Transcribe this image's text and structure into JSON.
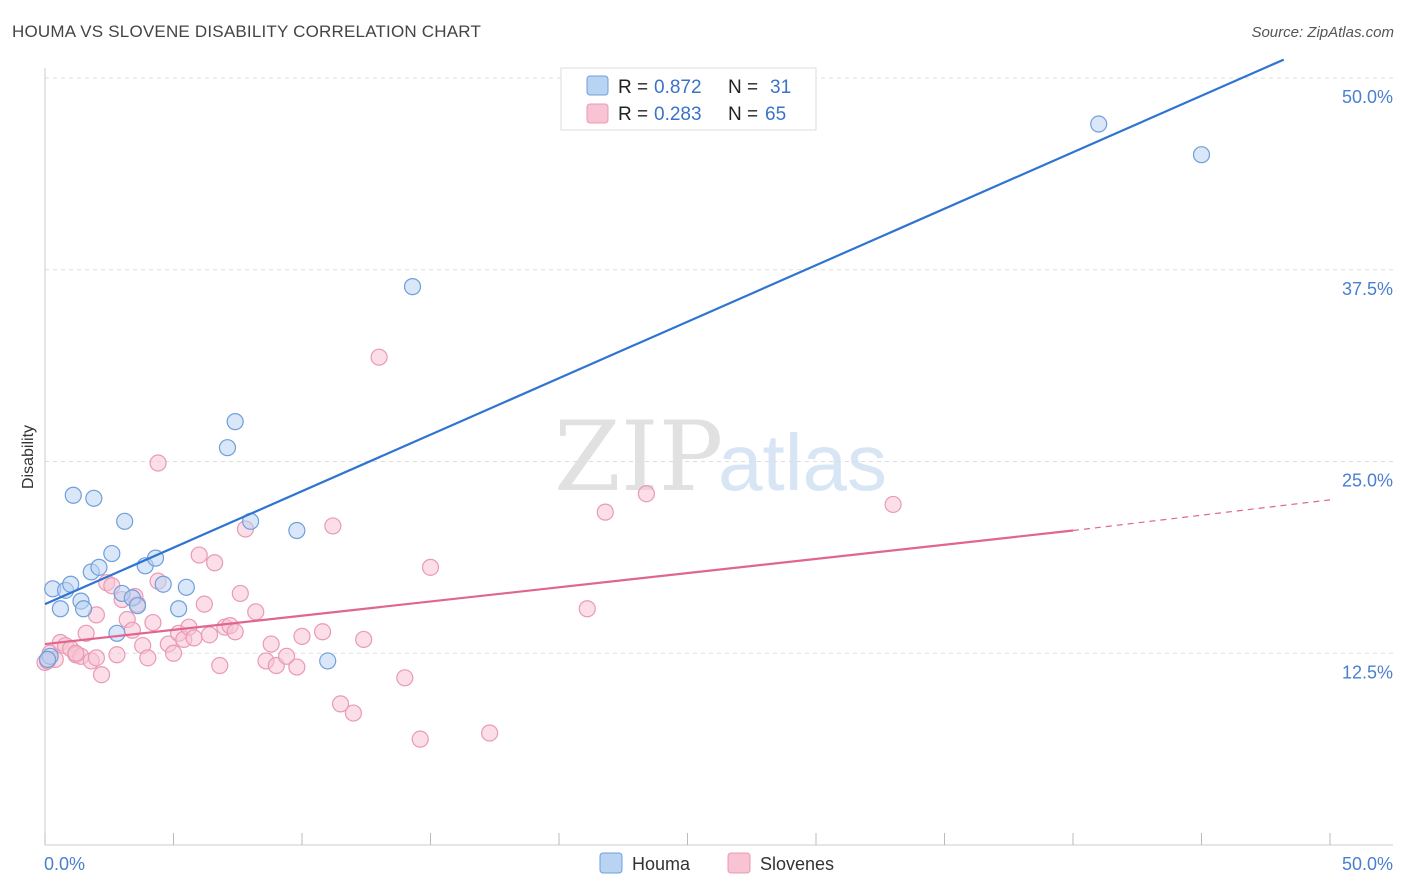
{
  "header": {
    "title": "HOUMA VS SLOVENE DISABILITY CORRELATION CHART",
    "source": "Source: ZipAtlas.com"
  },
  "watermark": {
    "zip": "ZIP",
    "atlas": "atlas"
  },
  "legend": {
    "houma": {
      "r_label": "R =",
      "r_value": "0.872",
      "n_label": "N =",
      "n_value": "31"
    },
    "slovenes": {
      "r_label": "R =",
      "r_value": "0.283",
      "n_label": "N =",
      "n_value": "65"
    }
  },
  "bottom_legend": {
    "houma": "Houma",
    "slovenes": "Slovenes"
  },
  "colors": {
    "houma_fill": "#b9d3f2",
    "houma_stroke": "#6f9fdc",
    "houma_line": "#2f74d0",
    "slovenes_fill": "#f8c3d3",
    "slovenes_stroke": "#e99ab4",
    "slovenes_line": "#e0668f",
    "grid": "#dddddd",
    "axis_text": "#4a7fcf"
  },
  "chart_data": {
    "type": "scatter",
    "title": "HOUMA VS SLOVENE DISABILITY CORRELATION CHART",
    "xlabel": "",
    "ylabel": "Disability",
    "xlim": [
      0,
      50
    ],
    "ylim": [
      0,
      50
    ],
    "x_tick_labels": [
      "0.0%",
      "50.0%"
    ],
    "y_ticks": [
      {
        "value": 12.5,
        "label": "12.5%"
      },
      {
        "value": 25.0,
        "label": "25.0%"
      },
      {
        "value": 37.5,
        "label": "37.5%"
      },
      {
        "value": 50.0,
        "label": "50.0%"
      }
    ],
    "series": [
      {
        "name": "Houma",
        "r": 0.872,
        "n": 31,
        "trend": {
          "x0": 0,
          "y0": 15.7,
          "x1": 48.2,
          "y1": 51.2
        },
        "points": [
          [
            0.2,
            12.3
          ],
          [
            0.3,
            16.7
          ],
          [
            0.6,
            15.4
          ],
          [
            0.8,
            16.6
          ],
          [
            1.0,
            17.0
          ],
          [
            1.1,
            22.8
          ],
          [
            1.4,
            15.9
          ],
          [
            1.5,
            15.4
          ],
          [
            1.8,
            17.8
          ],
          [
            1.9,
            22.6
          ],
          [
            2.1,
            18.1
          ],
          [
            2.6,
            19.0
          ],
          [
            2.8,
            13.8
          ],
          [
            3.0,
            16.4
          ],
          [
            3.1,
            21.1
          ],
          [
            3.4,
            16.1
          ],
          [
            3.6,
            15.6
          ],
          [
            3.9,
            18.2
          ],
          [
            4.3,
            18.7
          ],
          [
            4.6,
            17.0
          ],
          [
            5.2,
            15.4
          ],
          [
            5.5,
            16.8
          ],
          [
            7.1,
            25.9
          ],
          [
            7.4,
            27.6
          ],
          [
            8.0,
            21.1
          ],
          [
            9.8,
            20.5
          ],
          [
            11.0,
            12.0
          ],
          [
            14.3,
            36.4
          ],
          [
            41.0,
            47.0
          ],
          [
            45.0,
            45.0
          ],
          [
            0.1,
            12.1
          ]
        ]
      },
      {
        "name": "Slovenes",
        "r": 0.283,
        "n": 65,
        "trend": {
          "x0": 0,
          "y0": 13.1,
          "x1": 40.0,
          "y1": 20.5
        },
        "trend_dashed_to": {
          "x": 50,
          "y": 22.5
        },
        "points": [
          [
            0.0,
            11.9
          ],
          [
            0.2,
            12.5
          ],
          [
            0.4,
            12.1
          ],
          [
            0.6,
            13.2
          ],
          [
            0.8,
            13.0
          ],
          [
            1.0,
            12.8
          ],
          [
            1.2,
            12.4
          ],
          [
            1.4,
            12.3
          ],
          [
            1.6,
            13.8
          ],
          [
            1.8,
            12.0
          ],
          [
            2.0,
            12.2
          ],
          [
            2.0,
            15.0
          ],
          [
            2.2,
            11.1
          ],
          [
            2.4,
            17.1
          ],
          [
            2.6,
            16.9
          ],
          [
            2.8,
            12.4
          ],
          [
            3.0,
            16.0
          ],
          [
            3.2,
            14.7
          ],
          [
            3.4,
            14.0
          ],
          [
            3.6,
            15.7
          ],
          [
            3.8,
            13.0
          ],
          [
            4.0,
            12.2
          ],
          [
            4.2,
            14.5
          ],
          [
            4.4,
            17.2
          ],
          [
            4.4,
            24.9
          ],
          [
            4.8,
            13.1
          ],
          [
            5.0,
            12.5
          ],
          [
            5.2,
            13.8
          ],
          [
            5.4,
            13.4
          ],
          [
            5.6,
            14.2
          ],
          [
            5.8,
            13.5
          ],
          [
            6.0,
            18.9
          ],
          [
            6.2,
            15.7
          ],
          [
            6.4,
            13.7
          ],
          [
            6.6,
            18.4
          ],
          [
            6.8,
            11.7
          ],
          [
            7.0,
            14.2
          ],
          [
            7.2,
            14.3
          ],
          [
            7.4,
            13.9
          ],
          [
            7.6,
            16.4
          ],
          [
            7.8,
            20.6
          ],
          [
            8.2,
            15.2
          ],
          [
            8.6,
            12.0
          ],
          [
            8.8,
            13.1
          ],
          [
            9.0,
            11.7
          ],
          [
            9.4,
            12.3
          ],
          [
            9.8,
            11.6
          ],
          [
            10.0,
            13.6
          ],
          [
            10.8,
            13.9
          ],
          [
            11.2,
            20.8
          ],
          [
            11.5,
            9.2
          ],
          [
            12.0,
            8.6
          ],
          [
            12.4,
            13.4
          ],
          [
            13.0,
            31.8
          ],
          [
            14.0,
            10.9
          ],
          [
            14.6,
            6.9
          ],
          [
            15.0,
            18.1
          ],
          [
            17.3,
            7.3
          ],
          [
            21.1,
            15.4
          ],
          [
            21.8,
            21.7
          ],
          [
            23.4,
            22.9
          ],
          [
            33.0,
            22.2
          ],
          [
            0.1,
            12.0
          ],
          [
            1.2,
            12.5
          ],
          [
            3.5,
            16.2
          ]
        ]
      }
    ]
  }
}
